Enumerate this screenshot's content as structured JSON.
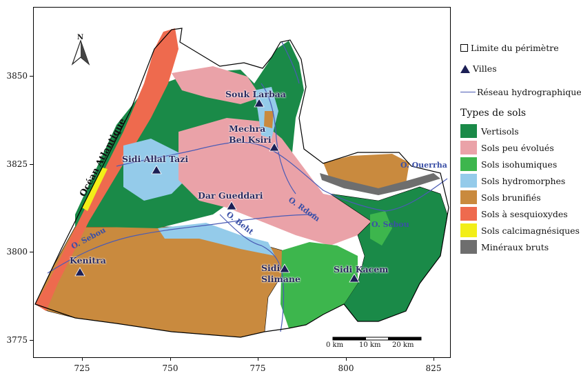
{
  "map": {
    "y_ticks": [
      "3850",
      "3825",
      "3800",
      "3775"
    ],
    "x_ticks": [
      "725",
      "750",
      "775",
      "800",
      "825"
    ],
    "ocean_label": "Océan Atlantique",
    "north_label": "N",
    "rivers": [
      "O. Sebou",
      "O. Beht",
      "O. Rdom",
      "O. Sebou",
      "O. Ouerrha"
    ],
    "cities": [
      {
        "name": "Souk Larbaa"
      },
      {
        "name": "Mechra Bel Ksiri"
      },
      {
        "name": "Sidi Allal Tazi"
      },
      {
        "name": "Dar Gueddari"
      },
      {
        "name": "Kenitra"
      },
      {
        "name": "Sidi Slimane"
      },
      {
        "name": "Sidi Kacem"
      }
    ],
    "scale_bar": {
      "labels": [
        "0 km",
        "10 km",
        "20 km"
      ]
    }
  },
  "legend": {
    "perimeter_label": "Limite du périmètre",
    "cities_label": "Villes",
    "network_label": "Réseau hydrographique",
    "soil_title": "Types de sols",
    "soil_types": [
      {
        "label": "Vertisols",
        "color": "#1a8a48"
      },
      {
        "label": "Sols peu évolués",
        "color": "#eaa2a8"
      },
      {
        "label": "Sols isohumiques",
        "color": "#3db64d"
      },
      {
        "label": "Sols hydromorphes",
        "color": "#94cbea"
      },
      {
        "label": "Sols brunifiés",
        "color": "#c98a3e"
      },
      {
        "label": "Sols à sesquioxydes",
        "color": "#ee6a4e"
      },
      {
        "label": "Sols calcimagnésiques",
        "color": "#f2ee18"
      },
      {
        "label": "Minéraux bruts",
        "color": "#6e6e6e"
      }
    ],
    "river_color": "#4a5bb5"
  }
}
